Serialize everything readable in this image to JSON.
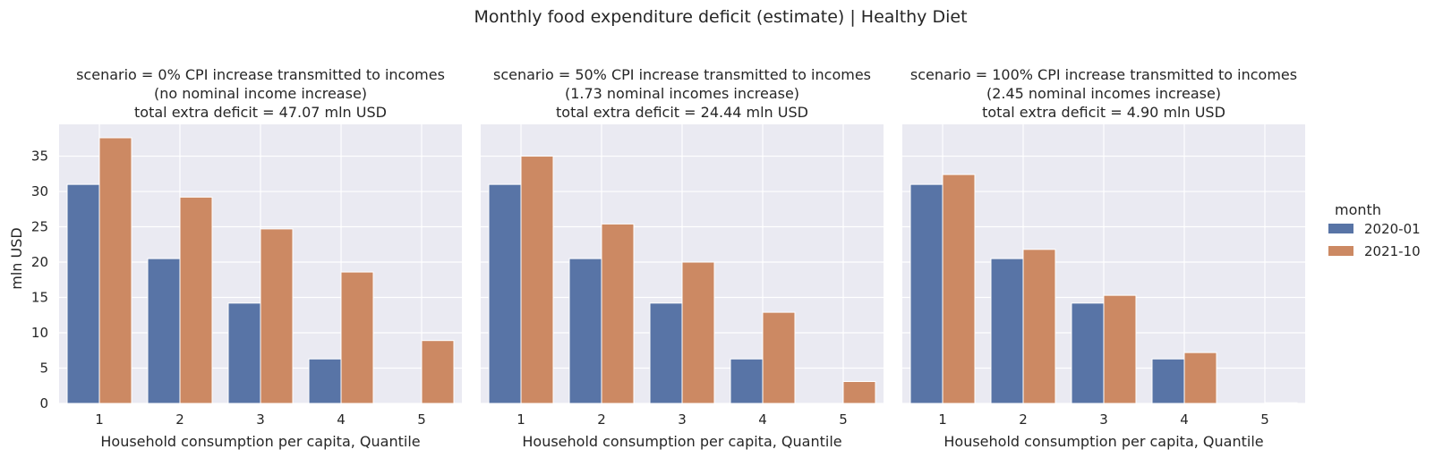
{
  "suptitle": "Monthly food expenditure deficit (estimate) | Healthy Diet",
  "ylabel": "mln USD",
  "xlabel": "Household consumption per capita, Quantile",
  "legend": {
    "title": "month",
    "entries": [
      "2020-01",
      "2021-10"
    ]
  },
  "colors": {
    "2020-01": "#5874a6",
    "2021-10": "#cc8963",
    "panel_bg": "#eaeaf2",
    "grid": "#ffffff"
  },
  "chart_data": [
    {
      "type": "bar",
      "title_lines": [
        "scenario = 0% CPI increase transmitted to incomes",
        "(no nominal income increase)",
        "total extra deficit = 47.07 mln USD"
      ],
      "categories": [
        "1",
        "2",
        "3",
        "4",
        "5"
      ],
      "series": [
        {
          "name": "2020-01",
          "values": [
            31.0,
            20.5,
            14.2,
            6.3,
            0.0
          ]
        },
        {
          "name": "2021-10",
          "values": [
            37.6,
            29.2,
            24.7,
            18.6,
            8.9
          ]
        }
      ],
      "xlabel": "Household consumption per capita, Quantile",
      "ylabel": "mln USD",
      "ylim": [
        0,
        39.5
      ],
      "yticks": [
        0,
        5,
        10,
        15,
        20,
        25,
        30,
        35
      ],
      "grid": true,
      "legend": "right"
    },
    {
      "type": "bar",
      "title_lines": [
        "scenario = 50% CPI increase transmitted to incomes",
        "(1.73 nominal incomes increase)",
        "total extra deficit = 24.44 mln USD"
      ],
      "categories": [
        "1",
        "2",
        "3",
        "4",
        "5"
      ],
      "series": [
        {
          "name": "2020-01",
          "values": [
            31.0,
            20.5,
            14.2,
            6.3,
            0.0
          ]
        },
        {
          "name": "2021-10",
          "values": [
            35.0,
            25.4,
            20.0,
            12.9,
            3.1
          ]
        }
      ],
      "xlabel": "Household consumption per capita, Quantile",
      "ylim": [
        0,
        39.5
      ],
      "grid": true
    },
    {
      "type": "bar",
      "title_lines": [
        "scenario = 100% CPI increase transmitted to incomes",
        "(2.45 nominal incomes increase)",
        "total extra deficit = 4.90 mln USD"
      ],
      "categories": [
        "1",
        "2",
        "3",
        "4",
        "5"
      ],
      "series": [
        {
          "name": "2020-01",
          "values": [
            31.0,
            20.5,
            14.2,
            6.3,
            0.0
          ]
        },
        {
          "name": "2021-10",
          "values": [
            32.4,
            21.8,
            15.3,
            7.2,
            0.1
          ]
        }
      ],
      "xlabel": "Household consumption per capita, Quantile",
      "ylim": [
        0,
        39.5
      ],
      "grid": true
    }
  ]
}
